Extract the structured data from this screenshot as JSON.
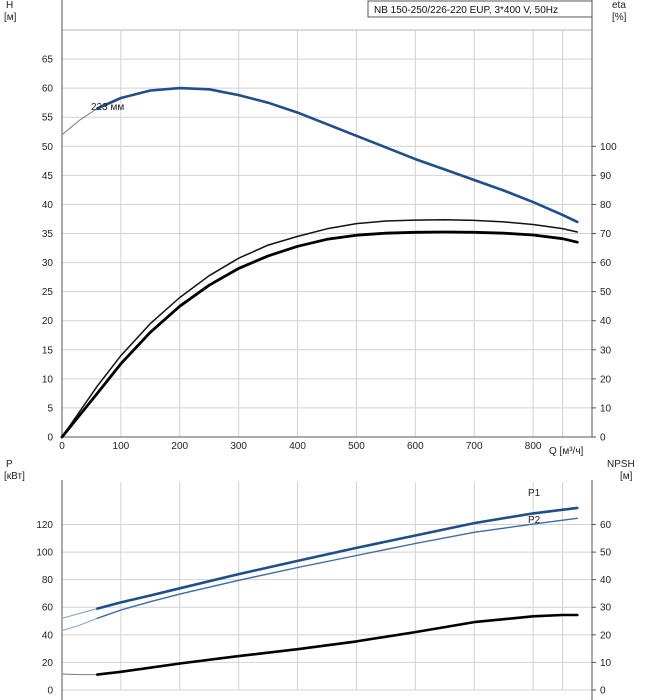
{
  "chart_data": [
    {
      "type": "line",
      "title": "NB 150-250/226-220 EUP, 3*400 V, 50Hz",
      "ylabel_left": "H",
      "ylabel_left_unit": "[м]",
      "ylabel_right": "eta",
      "ylabel_right_unit": "[%]",
      "xlabel": "Q [м³/ч]",
      "xlim": [
        0,
        900
      ],
      "ylim_left": [
        0,
        70
      ],
      "ylim_right": [
        0,
        140
      ],
      "x_ticks": [
        0,
        100,
        200,
        300,
        400,
        500,
        600,
        700,
        800
      ],
      "y_ticks_left": [
        0,
        5,
        10,
        15,
        20,
        25,
        30,
        35,
        40,
        45,
        50,
        55,
        60,
        65
      ],
      "y_ticks_right": [
        0,
        10,
        20,
        30,
        40,
        50,
        60,
        70,
        80,
        90,
        100
      ],
      "annotation": "223 мм",
      "series": [
        {
          "role": "H-extension",
          "axis": "left",
          "color": "#7a7a7a",
          "x": [
            0,
            30,
            60,
            100,
            150
          ],
          "y": [
            52.0,
            54.5,
            56.5,
            58.3,
            59.5
          ]
        },
        {
          "role": "H",
          "axis": "left",
          "color": "#1f4e8c",
          "x": [
            60,
            100,
            150,
            200,
            250,
            300,
            350,
            400,
            450,
            500,
            550,
            600,
            650,
            700,
            750,
            800,
            850,
            875
          ],
          "y": [
            56.5,
            58.3,
            59.6,
            60.0,
            59.8,
            58.8,
            57.5,
            55.8,
            53.8,
            51.8,
            49.8,
            47.8,
            46.0,
            44.2,
            42.4,
            40.4,
            38.2,
            37.0
          ]
        },
        {
          "role": "eta-1",
          "axis": "right",
          "color": "#111111",
          "x": [
            0,
            60,
            100,
            150,
            200,
            250,
            300,
            350,
            400,
            450,
            500,
            550,
            600,
            650,
            700,
            750,
            800,
            850,
            875
          ],
          "y": [
            0,
            17.5,
            28,
            39,
            48,
            55.5,
            61.5,
            66,
            69,
            71.6,
            73.4,
            74.3,
            74.6,
            74.7,
            74.5,
            74.0,
            73.1,
            71.7,
            70.5
          ]
        },
        {
          "role": "eta-2",
          "axis": "right",
          "color": "#000000",
          "x": [
            0,
            60,
            100,
            150,
            200,
            250,
            300,
            350,
            400,
            450,
            500,
            550,
            600,
            650,
            700,
            750,
            800,
            850,
            875
          ],
          "y": [
            0,
            15,
            25.2,
            36,
            45,
            52.2,
            58,
            62.3,
            65.6,
            68,
            69.4,
            70.1,
            70.4,
            70.5,
            70.4,
            70.1,
            69.5,
            68.2,
            67
          ]
        }
      ]
    },
    {
      "type": "line",
      "ylabel_left": "P",
      "ylabel_left_unit": "[кВт]",
      "ylabel_right": "NPSH",
      "ylabel_right_unit": "[м]",
      "xlim": [
        0,
        900
      ],
      "ylim_left": [
        0,
        145
      ],
      "ylim_right": [
        0,
        72.5
      ],
      "y_ticks_left": [
        0,
        20,
        40,
        60,
        80,
        100,
        120
      ],
      "y_ticks_right": [
        0,
        10,
        20,
        30,
        40,
        50,
        60
      ],
      "series": [
        {
          "role": "P1-extension",
          "axis": "left",
          "color": "#7a9cc4",
          "x": [
            0,
            30,
            60
          ],
          "y": [
            52,
            55.5,
            59
          ]
        },
        {
          "name": "P1",
          "axis": "left",
          "color": "#1f4e8c",
          "x": [
            60,
            100,
            150,
            200,
            300,
            400,
            500,
            600,
            700,
            800,
            875
          ],
          "y": [
            59,
            63.5,
            68.5,
            73.7,
            84,
            93.6,
            103,
            112,
            121,
            128,
            132
          ]
        },
        {
          "role": "P2-extension",
          "axis": "left",
          "color": "#7a9cc4",
          "x": [
            0,
            30,
            60
          ],
          "y": [
            43,
            47,
            52
          ]
        },
        {
          "name": "P2",
          "axis": "left",
          "color": "#3b6aa6",
          "x": [
            60,
            100,
            150,
            200,
            300,
            400,
            500,
            600,
            700,
            800,
            875
          ],
          "y": [
            52,
            58,
            64,
            69.5,
            79.5,
            88.8,
            97.5,
            106.2,
            114.3,
            120.3,
            124.5
          ]
        },
        {
          "role": "NPSH-extension",
          "axis": "right",
          "color": "#7a7a7a",
          "x": [
            0,
            30,
            60
          ],
          "y": [
            5.8,
            5.6,
            5.6
          ]
        },
        {
          "role": "NPSH",
          "axis": "right",
          "color": "#000000",
          "x": [
            60,
            100,
            150,
            200,
            300,
            400,
            500,
            600,
            700,
            800,
            850,
            875
          ],
          "y": [
            5.6,
            6.6,
            8.1,
            9.6,
            12.3,
            14.8,
            17.6,
            21,
            24.6,
            26.7,
            27.2,
            27.2
          ]
        }
      ]
    }
  ]
}
